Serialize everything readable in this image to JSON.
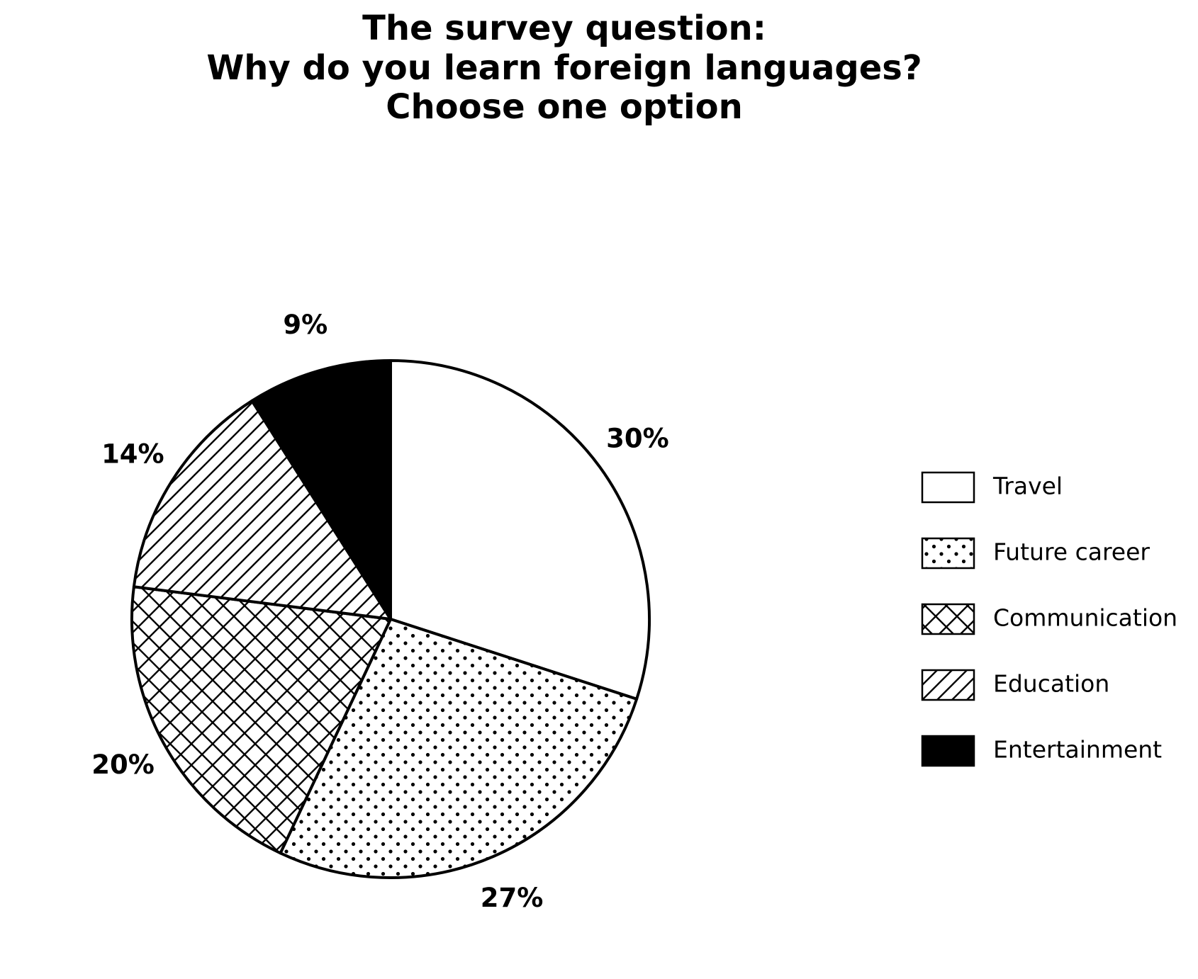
{
  "chart_data": {
    "type": "pie",
    "title": [
      "The survey question:",
      "Why do you learn foreign languages?",
      "Choose one option"
    ],
    "categories": [
      "Travel",
      "Future career",
      "Communication",
      "Education",
      "Entertainment"
    ],
    "values": [
      30,
      27,
      20,
      14,
      9
    ],
    "value_labels": [
      "30%",
      "27%",
      "20%",
      "14%",
      "9%"
    ],
    "patterns": [
      "none",
      "dots",
      "crosshatch",
      "diagonal",
      "solid"
    ],
    "legend": "right"
  }
}
